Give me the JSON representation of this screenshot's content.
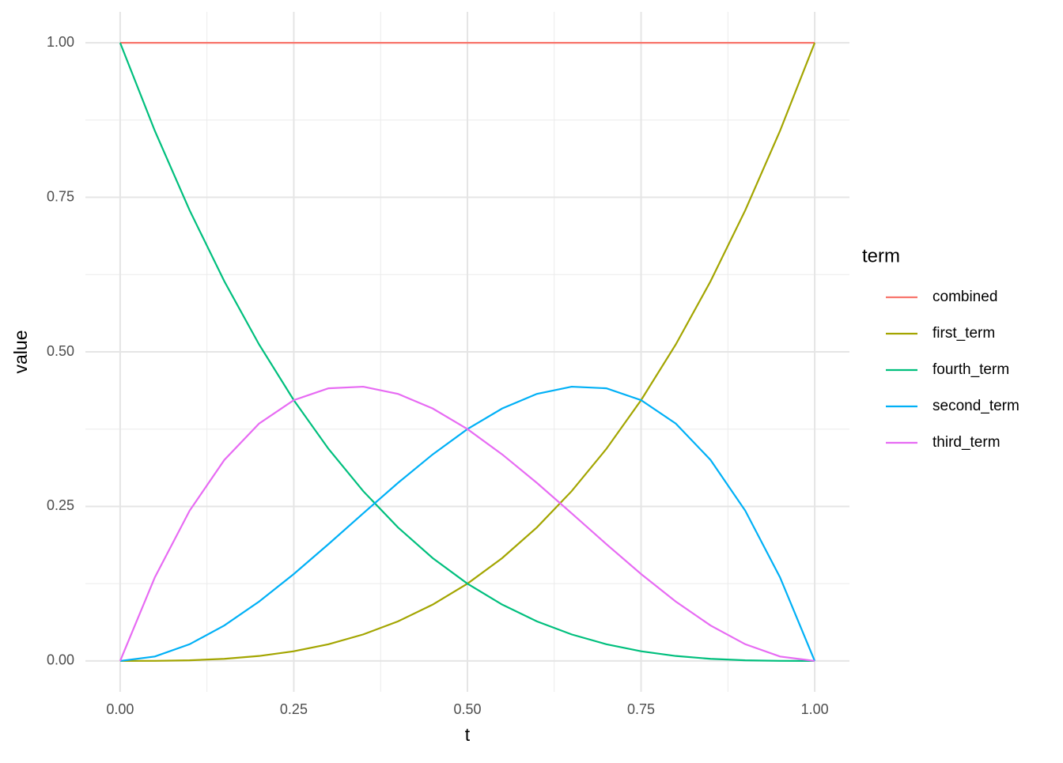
{
  "chart_data": {
    "type": "line",
    "x_label": "t",
    "y_label": "value",
    "legend_title": "term",
    "xlim": [
      -0.05,
      1.05
    ],
    "ylim": [
      -0.05,
      1.05
    ],
    "xticks": [
      {
        "value": 0,
        "label": "0.00"
      },
      {
        "value": 0.25,
        "label": "0.25"
      },
      {
        "value": 0.5,
        "label": "0.50"
      },
      {
        "value": 0.75,
        "label": "0.75"
      },
      {
        "value": 1,
        "label": "1.00"
      }
    ],
    "yticks": [
      {
        "value": 0,
        "label": "0.00"
      },
      {
        "value": 0.25,
        "label": "0.25"
      },
      {
        "value": 0.5,
        "label": "0.50"
      },
      {
        "value": 0.75,
        "label": "0.75"
      },
      {
        "value": 1,
        "label": "1.00"
      }
    ],
    "grid": true,
    "legend": "right",
    "x": [
      0,
      0.05,
      0.1,
      0.15,
      0.2,
      0.25,
      0.3,
      0.35,
      0.4,
      0.45,
      0.5,
      0.55,
      0.6,
      0.65,
      0.7,
      0.75,
      0.8,
      0.85,
      0.9,
      0.95,
      1
    ],
    "series": [
      {
        "name": "combined",
        "color": "#F8766D",
        "values": [
          1,
          1,
          1,
          1,
          1,
          1,
          1,
          1,
          1,
          1,
          1,
          1,
          1,
          1,
          1,
          1,
          1,
          1,
          1,
          1,
          1
        ]
      },
      {
        "name": "first_term",
        "color": "#A3A500",
        "values": [
          0,
          0.000125,
          0.001,
          0.003375,
          0.008,
          0.015625,
          0.027,
          0.042875,
          0.064,
          0.091125,
          0.125,
          0.166375,
          0.216,
          0.274625,
          0.343,
          0.421875,
          0.512,
          0.614125,
          0.729,
          0.857375,
          1
        ]
      },
      {
        "name": "fourth_term",
        "color": "#00BF7D",
        "values": [
          1,
          0.857375,
          0.729,
          0.614125,
          0.512,
          0.421875,
          0.343,
          0.274625,
          0.216,
          0.166375,
          0.125,
          0.091125,
          0.064,
          0.042875,
          0.027,
          0.015625,
          0.008,
          0.003375,
          0.001,
          0.000125,
          0
        ]
      },
      {
        "name": "second_term",
        "color": "#00B0F6",
        "values": [
          0,
          0.007125,
          0.027,
          0.057375,
          0.096,
          0.140625,
          0.189,
          0.238875,
          0.288,
          0.334125,
          0.375,
          0.408375,
          0.432,
          0.443625,
          0.441,
          0.421875,
          0.384,
          0.325125,
          0.243,
          0.135375,
          0
        ]
      },
      {
        "name": "third_term",
        "color": "#E76BF3",
        "values": [
          0,
          0.135375,
          0.243,
          0.325125,
          0.384,
          0.421875,
          0.441,
          0.443625,
          0.432,
          0.408375,
          0.375,
          0.334125,
          0.288,
          0.238875,
          0.189,
          0.140625,
          0.096,
          0.057375,
          0.027,
          0.007125,
          0
        ]
      }
    ]
  }
}
